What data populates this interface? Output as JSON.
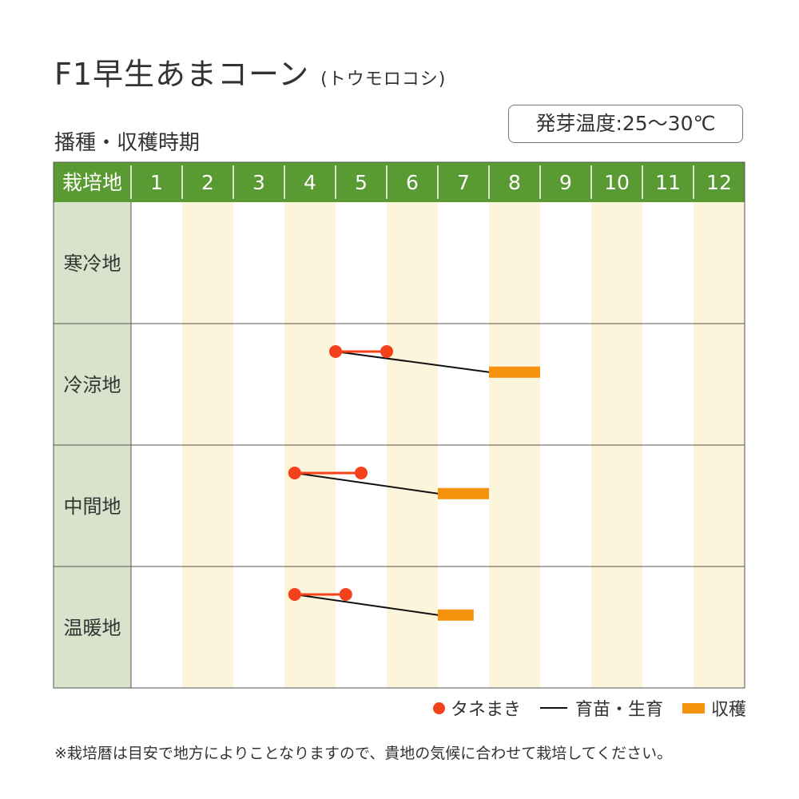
{
  "title": "F1早生あまコーン",
  "title_sub": "(トウモロコシ)",
  "subtitle": "播種・収穫時期",
  "temperature": "発芽温度:25〜30℃",
  "legend": {
    "sowing": "タネまき",
    "growing": "育苗・生育",
    "harvest": "収穫"
  },
  "note": "※栽培暦は目安で地方によりことなりますので、貴地の気候に合わせて栽培してください。",
  "colors": {
    "header_green": "#5a9a32",
    "label_col": "#d9e2cb",
    "stripe": "#fcf4db",
    "sowing": "#f2411b",
    "growing": "#111111",
    "harvest": "#f5930e",
    "grid": "#555555"
  },
  "chart_data": {
    "type": "gantt",
    "header_label": "栽培地",
    "months": [
      "1",
      "2",
      "3",
      "4",
      "5",
      "6",
      "7",
      "8",
      "9",
      "10",
      "11",
      "12"
    ],
    "regions": [
      {
        "name": "寒冷地",
        "sowing": null,
        "growing": null,
        "harvest": null
      },
      {
        "name": "冷涼地",
        "sowing": [
          5.0,
          6.0
        ],
        "growing": [
          5.0,
          8.0
        ],
        "harvest": [
          8.0,
          9.0
        ]
      },
      {
        "name": "中間地",
        "sowing": [
          4.2,
          5.5
        ],
        "growing": [
          4.2,
          7.0
        ],
        "harvest": [
          7.0,
          8.0
        ]
      },
      {
        "name": "温暖地",
        "sowing": [
          4.2,
          5.2
        ],
        "growing": [
          4.2,
          7.0
        ],
        "harvest": [
          7.0,
          7.7
        ]
      }
    ]
  }
}
